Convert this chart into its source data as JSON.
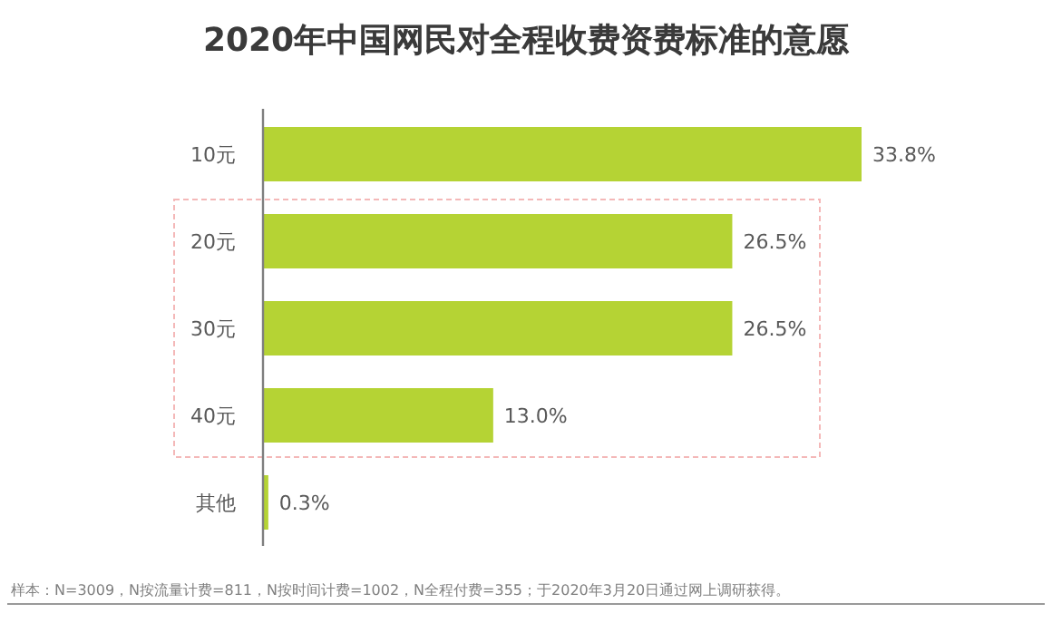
{
  "chart_data": {
    "type": "bar",
    "orientation": "horizontal",
    "title": "2020年中国网民对全程收费资费标准的意愿",
    "categories": [
      "10元",
      "20元",
      "30元",
      "40元",
      "其他"
    ],
    "values": [
      33.8,
      26.5,
      26.5,
      13.0,
      0.3
    ],
    "value_labels": [
      "33.8%",
      "26.5%",
      "26.5%",
      "13.0%",
      "0.3%"
    ],
    "color": "#b5d334",
    "annotations": [
      "样本：N=3009，N按流量计费=811，N按时间计费=1002，N全程付费=355；于2020年3月20日通过网上调研获得。"
    ]
  }
}
